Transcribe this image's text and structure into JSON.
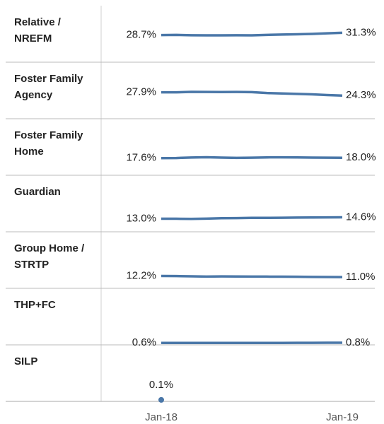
{
  "chart_data": {
    "type": "line",
    "categories": [
      "Jan-18",
      null,
      null,
      null,
      null,
      null,
      null,
      null,
      null,
      null,
      null,
      null,
      "Jan-19"
    ],
    "ylim": [
      0,
      60
    ],
    "color": "#4a77a8",
    "series": [
      {
        "name": "Relative / NREFM",
        "values": [
          28.7,
          28.9,
          28.5,
          28.4,
          28.4,
          28.5,
          28.4,
          28.9,
          29.3,
          29.6,
          30.0,
          30.7,
          31.3
        ],
        "value_labels": [
          "28.7%",
          null,
          null,
          null,
          null,
          null,
          null,
          null,
          null,
          null,
          null,
          null,
          "31.3%"
        ]
      },
      {
        "name": "Foster Family Agency",
        "values": [
          27.9,
          27.9,
          28.4,
          28.3,
          28.2,
          28.3,
          28.1,
          27.1,
          26.6,
          26.2,
          25.7,
          24.9,
          24.3
        ],
        "value_labels": [
          "27.9%",
          null,
          null,
          null,
          null,
          null,
          null,
          null,
          null,
          null,
          null,
          null,
          "24.3%"
        ]
      },
      {
        "name": "Foster Family Home",
        "values": [
          17.6,
          17.7,
          18.3,
          18.6,
          18.2,
          17.9,
          18.1,
          18.4,
          18.5,
          18.4,
          18.2,
          18.1,
          18.0
        ],
        "value_labels": [
          "17.6%",
          null,
          null,
          null,
          null,
          null,
          null,
          null,
          null,
          null,
          null,
          null,
          "18.0%"
        ]
      },
      {
        "name": "Guardian",
        "values": [
          13.0,
          13.0,
          12.8,
          13.1,
          13.6,
          13.7,
          14.0,
          14.0,
          14.1,
          14.3,
          14.4,
          14.5,
          14.6
        ],
        "value_labels": [
          "13.0%",
          null,
          null,
          null,
          null,
          null,
          null,
          null,
          null,
          null,
          null,
          null,
          "14.6%"
        ]
      },
      {
        "name": "Group Home / STRTP",
        "values": [
          12.2,
          12.1,
          11.8,
          11.5,
          11.7,
          11.6,
          11.5,
          11.5,
          11.4,
          11.3,
          11.2,
          11.1,
          11.0
        ],
        "value_labels": [
          "12.2%",
          null,
          null,
          null,
          null,
          null,
          null,
          null,
          null,
          null,
          null,
          null,
          "11.0%"
        ]
      },
      {
        "name": "THP+FC",
        "values": [
          0.6,
          0.6,
          0.6,
          0.6,
          0.6,
          0.6,
          0.6,
          0.6,
          0.6,
          0.7,
          0.7,
          0.8,
          0.8
        ],
        "value_labels": [
          "0.6%",
          null,
          null,
          null,
          null,
          null,
          null,
          null,
          null,
          null,
          null,
          null,
          "0.8%"
        ]
      },
      {
        "name": "SILP",
        "values": [
          0.1,
          null,
          null,
          null,
          null,
          null,
          null,
          null,
          null,
          null,
          null,
          null,
          null
        ],
        "value_labels": [
          "0.1%",
          null,
          null,
          null,
          null,
          null,
          null,
          null,
          null,
          null,
          null,
          null,
          null
        ]
      }
    ]
  }
}
